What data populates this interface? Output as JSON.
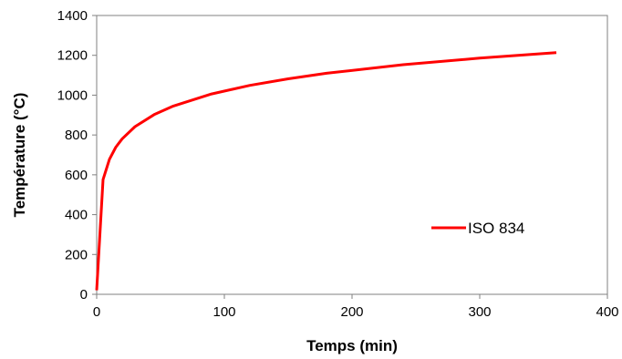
{
  "chart_data": {
    "type": "line",
    "title": "",
    "xlabel": "Temps (min)",
    "ylabel": "Température (°C)",
    "xlim": [
      0,
      400
    ],
    "ylim": [
      0,
      1400
    ],
    "x_ticks": [
      0,
      100,
      200,
      300,
      400
    ],
    "y_ticks": [
      0,
      200,
      400,
      600,
      800,
      1000,
      1200,
      1400
    ],
    "grid": false,
    "legend_position": "right",
    "series": [
      {
        "name": "ISO 834",
        "color": "#ff0000",
        "x": [
          0,
          5,
          10,
          15,
          20,
          30,
          45,
          60,
          90,
          120,
          150,
          180,
          240,
          300,
          360
        ],
        "y": [
          20,
          576,
          678,
          739,
          781,
          842,
          902,
          945,
          1006,
          1049,
          1082,
          1110,
          1153,
          1186,
          1214
        ]
      }
    ]
  }
}
